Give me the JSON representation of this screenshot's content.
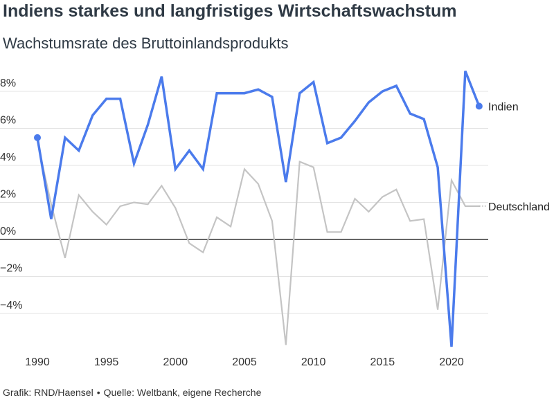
{
  "title": "Indiens starkes und langfristiges Wirtschaftswachstum",
  "subtitle": "Wachstumsrate des Bruttoinlandsprodukts",
  "footer": {
    "credit": "Grafik: RND/Haensel",
    "separator": "•",
    "source": "Quelle: Weltbank, eigene Recherche"
  },
  "colors": {
    "india": "#4b7bec",
    "germany": "#c4c4c4",
    "grid": "#e3e3e3",
    "zero_line": "#333333",
    "text": "#2f3a45"
  },
  "chart_data": {
    "type": "line",
    "title": "Indiens starkes und langfristiges Wirtschaftswachstum",
    "subtitle": "Wachstumsrate des Bruttoinlandsprodukts",
    "xlabel": "",
    "ylabel": "",
    "xlim": [
      1989.3,
      2022.6
    ],
    "ylim": [
      -6.2,
      9.2
    ],
    "grid": true,
    "y_ticks": [
      {
        "value": 8,
        "label": "8%"
      },
      {
        "value": 6,
        "label": "6%"
      },
      {
        "value": 4,
        "label": "4%"
      },
      {
        "value": 2,
        "label": "2%"
      },
      {
        "value": 0,
        "label": "0%"
      },
      {
        "value": -2,
        "label": "−2%"
      },
      {
        "value": -4,
        "label": "−4%"
      }
    ],
    "x_ticks": [
      {
        "value": 1990,
        "label": "1990"
      },
      {
        "value": 1995,
        "label": "1995"
      },
      {
        "value": 2000,
        "label": "2000"
      },
      {
        "value": 2005,
        "label": "2005"
      },
      {
        "value": 2010,
        "label": "2010"
      },
      {
        "value": 2015,
        "label": "2015"
      },
      {
        "value": 2020,
        "label": "2020"
      }
    ],
    "x": [
      1990,
      1991,
      1992,
      1993,
      1994,
      1995,
      1996,
      1997,
      1998,
      1999,
      2000,
      2001,
      2002,
      2003,
      2004,
      2005,
      2006,
      2007,
      2008,
      2009,
      2010,
      2011,
      2012,
      2013,
      2014,
      2015,
      2016,
      2017,
      2018,
      2019,
      2020,
      2021,
      2022
    ],
    "series": [
      {
        "name": "Indien",
        "key": "india",
        "values": [
          5.5,
          1.1,
          5.5,
          4.8,
          6.7,
          7.6,
          7.6,
          4.1,
          6.2,
          8.8,
          3.8,
          4.8,
          3.8,
          7.9,
          7.9,
          7.9,
          8.1,
          7.7,
          3.1,
          7.9,
          8.5,
          5.2,
          5.5,
          6.4,
          7.4,
          8.0,
          8.3,
          6.8,
          6.5,
          3.9,
          -5.8,
          9.1,
          7.2
        ],
        "endpoint_markers": true
      },
      {
        "name": "Deutschland",
        "key": "germany",
        "values": [
          5.3,
          1.9,
          -1.0,
          2.4,
          1.5,
          0.8,
          1.8,
          2.0,
          1.9,
          2.9,
          1.7,
          -0.2,
          -0.7,
          1.2,
          0.7,
          3.8,
          3.0,
          1.0,
          -5.7,
          4.2,
          3.9,
          0.4,
          0.4,
          2.2,
          1.5,
          2.3,
          2.7,
          1.0,
          1.1,
          -3.8,
          3.2,
          1.8,
          1.8
        ],
        "endpoint_markers": false
      }
    ],
    "legend": "direct labels at right end of lines"
  }
}
